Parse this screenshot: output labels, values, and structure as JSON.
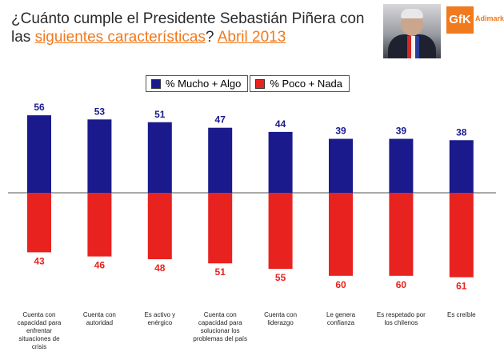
{
  "title": {
    "line1": "¿Cuánto cumple el Presidente Sebastián Piñera con",
    "line2_prefix": "las ",
    "line2_highlight": "siguientes características",
    "line2_middle": "? ",
    "line2_date": "Abril 2013"
  },
  "logo": {
    "mark": "GfK",
    "name": "Adimark"
  },
  "colors": {
    "positive": "#1a1a8c",
    "negative": "#e8231f",
    "accent": "#f07a1e"
  },
  "chart_data": {
    "type": "bar",
    "categories": [
      "Cuenta con capacidad para enfrentar situaciones de crisis",
      "Cuenta con autoridad",
      "Es activo y enérgico",
      "Cuenta con capacidad para solucionar los problemas del país",
      "Cuenta con liderazgo",
      "Le genera confianza",
      "Es respetado por los chilenos",
      "Es creíble"
    ],
    "series": [
      {
        "name": "% Mucho + Algo",
        "values": [
          56,
          53,
          51,
          47,
          44,
          39,
          39,
          38
        ]
      },
      {
        "name": "% Poco + Nada",
        "values": [
          43,
          46,
          48,
          51,
          55,
          60,
          60,
          61
        ]
      }
    ]
  }
}
